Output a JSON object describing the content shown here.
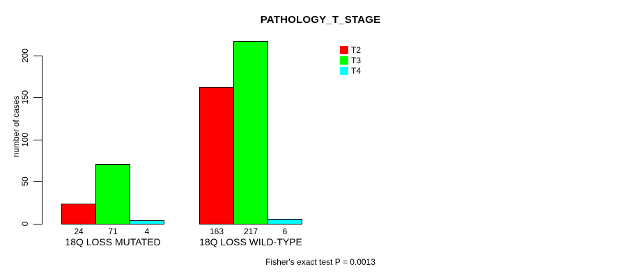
{
  "chart_data": {
    "type": "bar",
    "title": "PATHOLOGY_T_STAGE",
    "ylabel": "number of cases",
    "xlabel": "",
    "categories": [
      "18Q LOSS MUTATED",
      "18Q LOSS WILD-TYPE"
    ],
    "series": [
      {
        "name": "T2",
        "color": "#ff0000",
        "values": [
          24,
          163
        ]
      },
      {
        "name": "T3",
        "color": "#00ff00",
        "values": [
          71,
          217
        ]
      },
      {
        "name": "T4",
        "color": "#00ffff",
        "values": [
          4,
          6
        ]
      }
    ],
    "yticks": [
      0,
      50,
      100,
      150,
      200
    ],
    "ylim": [
      0,
      220
    ],
    "grid": false,
    "show_value_labels": true,
    "legend_position": "inside-top-right",
    "note": "Fisher's exact test P = 0.0013",
    "background": "#ffffff",
    "axis_color": "#000000",
    "bar_border_color": "#000000",
    "text_color": "#000000"
  }
}
